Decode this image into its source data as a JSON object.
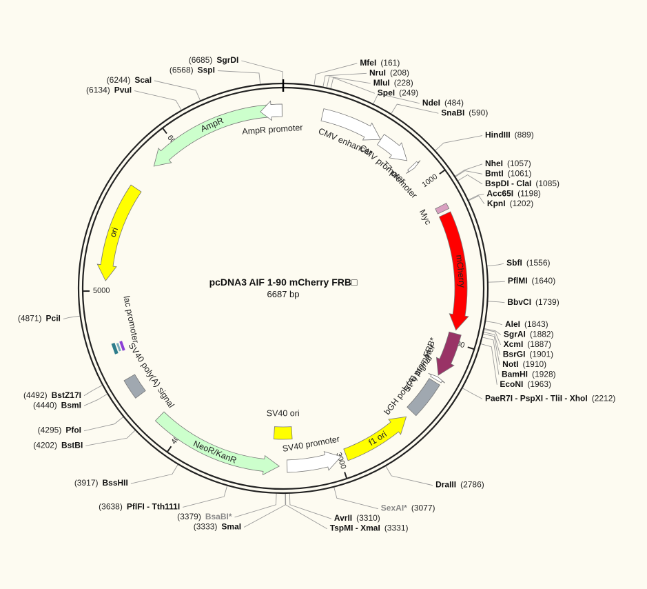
{
  "plasmid": {
    "name": "pcDNA3 AIF 1-90 mCherry FRB□",
    "length_label": "6687 bp",
    "total_bp": 6687
  },
  "ticks": [
    {
      "bp": 1000,
      "label": "1000"
    },
    {
      "bp": 2000,
      "label": "2000"
    },
    {
      "bp": 3000,
      "label": "3000"
    },
    {
      "bp": 4000,
      "label": "4000"
    },
    {
      "bp": 5000,
      "label": "5000"
    },
    {
      "bp": 6000,
      "label": "6000"
    }
  ],
  "features": [
    {
      "id": "cmv-enhancer",
      "label": "CMV enhancer",
      "start": 237,
      "end": 617,
      "dir": 1,
      "type": "arrow",
      "color": "#ffffff",
      "track": 1
    },
    {
      "id": "cmv-promoter",
      "label": "CMV promoter",
      "start": 618,
      "end": 820,
      "dir": 1,
      "type": "arrow",
      "color": "#ffffff",
      "track": 1
    },
    {
      "id": "t7-promoter",
      "label": "T7 promoter",
      "start": 864,
      "end": 883,
      "dir": 1,
      "type": "arrow",
      "color": "#ffffff",
      "track": 1
    },
    {
      "id": "myc",
      "label": "Myc",
      "start": 1160,
      "end": 1195,
      "dir": 0,
      "type": "box",
      "color": "#d9a0c0",
      "track": 1
    },
    {
      "id": "mcherry",
      "label": "mCherry",
      "start": 1215,
      "end": 1925,
      "dir": 1,
      "type": "arrow",
      "color": "#ff0000",
      "track": 1
    },
    {
      "id": "frb",
      "label": "FRB*",
      "start": 1945,
      "end": 2215,
      "dir": 1,
      "type": "arrow",
      "color": "#993366",
      "track": 1
    },
    {
      "id": "sp6-promoter",
      "label": "SP6 promoter",
      "start": 2225,
      "end": 2245,
      "dir": -1,
      "type": "arrow",
      "color": "#ffffff",
      "track": 1
    },
    {
      "id": "bgh-polya",
      "label": "bGH poly(A) signal",
      "start": 2260,
      "end": 2485,
      "dir": 0,
      "type": "box",
      "color": "#a0a8b0",
      "track": 1
    },
    {
      "id": "f1-ori",
      "label": "f1 ori",
      "start": 2530,
      "end": 2960,
      "dir": -1,
      "type": "arrow",
      "color": "#ffff00",
      "track": 1
    },
    {
      "id": "sv40-promoter",
      "label": "SV40 promoter",
      "start": 2990,
      "end": 3320,
      "dir": -1,
      "type": "arrow",
      "color": "#ffffff",
      "track": 1
    },
    {
      "id": "sv40-ori",
      "label": "SV40 ori",
      "start": 3280,
      "end": 3410,
      "dir": 0,
      "type": "box",
      "color": "#ffff00",
      "track": 2
    },
    {
      "id": "neor-kanr",
      "label": "NeoR/KanR",
      "start": 3367,
      "end": 4161,
      "dir": -1,
      "type": "arrow",
      "color": "#ccffcc",
      "track": 1
    },
    {
      "id": "sv40-polya",
      "label": "SV40 poly(A) signal",
      "start": 4335,
      "end": 4456,
      "dir": 0,
      "type": "box",
      "color": "#a0a8b0",
      "track": 1
    },
    {
      "id": "ori",
      "label": "ori",
      "start": 5060,
      "end": 5650,
      "dir": -1,
      "type": "arrow",
      "color": "#ffff00",
      "track": 1
    },
    {
      "id": "ampr",
      "label": "AmpR",
      "start": 5820,
      "end": 6680,
      "dir": -1,
      "type": "arrow",
      "color": "#ccffcc",
      "track": 1
    },
    {
      "id": "ampr-promoter",
      "label": "AmpR promoter",
      "start": 6550,
      "end": 6680,
      "dir": -1,
      "type": "arrow",
      "color": "#ffffff",
      "track": 1
    }
  ],
  "lac": {
    "label": "lac promoter",
    "op_label": "lacI op",
    "bp": 4650
  },
  "sites": [
    {
      "name": "SgrDI",
      "pos": 6685,
      "ring_bp": 6685,
      "side": "L",
      "gray": false
    },
    {
      "name": "SspI",
      "pos": 6568,
      "ring_bp": 6568,
      "side": "L",
      "gray": false
    },
    {
      "name": "ScaI",
      "pos": 6244,
      "ring_bp": 6244,
      "side": "L",
      "gray": false
    },
    {
      "name": "PvuI",
      "pos": 6134,
      "ring_bp": 6134,
      "side": "L",
      "gray": false
    },
    {
      "name": "PciI",
      "pos": 4871,
      "ring_bp": 4871,
      "side": "L",
      "gray": false
    },
    {
      "name": "BstZ17I",
      "pos": 4492,
      "ring_bp": 4492,
      "side": "L",
      "gray": false
    },
    {
      "name": "BsmI",
      "pos": 4440,
      "ring_bp": 4440,
      "side": "L",
      "gray": false
    },
    {
      "name": "PfoI",
      "pos": 4295,
      "ring_bp": 4295,
      "side": "L",
      "gray": false
    },
    {
      "name": "BstBI",
      "pos": 4202,
      "ring_bp": 4202,
      "side": "L",
      "gray": false
    },
    {
      "name": "BssHII",
      "pos": 3917,
      "ring_bp": 3917,
      "side": "L",
      "gray": false
    },
    {
      "name": "PflFI - Tth111I",
      "pos": 3638,
      "ring_bp": 3638,
      "side": "L",
      "gray": false
    },
    {
      "name": "BsaBI*",
      "pos": 3379,
      "ring_bp": 3379,
      "side": "L",
      "gray": true
    },
    {
      "name": "SmaI",
      "pos": 3333,
      "ring_bp": 3333,
      "side": "L",
      "gray": false
    },
    {
      "name": "MfeI",
      "pos": 161,
      "ring_bp": 161,
      "side": "R",
      "gray": false
    },
    {
      "name": "NruI",
      "pos": 208,
      "ring_bp": 208,
      "side": "R",
      "gray": false
    },
    {
      "name": "MluI",
      "pos": 228,
      "ring_bp": 228,
      "side": "R",
      "gray": false
    },
    {
      "name": "SpeI",
      "pos": 249,
      "ring_bp": 249,
      "side": "R",
      "gray": false
    },
    {
      "name": "NdeI",
      "pos": 484,
      "ring_bp": 484,
      "side": "R",
      "gray": false
    },
    {
      "name": "SnaBI",
      "pos": 590,
      "ring_bp": 590,
      "side": "R",
      "gray": false
    },
    {
      "name": "HindIII",
      "pos": 889,
      "ring_bp": 889,
      "side": "R",
      "gray": false
    },
    {
      "name": "NheI",
      "pos": 1057,
      "ring_bp": 1057,
      "side": "R",
      "gray": false
    },
    {
      "name": "BmtI",
      "pos": 1061,
      "ring_bp": 1061,
      "side": "R",
      "gray": false
    },
    {
      "name": "BspDI - ClaI",
      "pos": 1085,
      "ring_bp": 1085,
      "side": "R",
      "gray": false
    },
    {
      "name": "Acc65I",
      "pos": 1198,
      "ring_bp": 1198,
      "side": "R",
      "gray": false
    },
    {
      "name": "KpnI",
      "pos": 1202,
      "ring_bp": 1202,
      "side": "R",
      "gray": false
    },
    {
      "name": "SbfI",
      "pos": 1556,
      "ring_bp": 1556,
      "side": "R",
      "gray": false
    },
    {
      "name": "PflMI",
      "pos": 1640,
      "ring_bp": 1640,
      "side": "R",
      "gray": false
    },
    {
      "name": "BbvCI",
      "pos": 1739,
      "ring_bp": 1739,
      "side": "R",
      "gray": false
    },
    {
      "name": "AleI",
      "pos": 1843,
      "ring_bp": 1843,
      "side": "R",
      "gray": false
    },
    {
      "name": "SgrAI",
      "pos": 1882,
      "ring_bp": 1882,
      "side": "R",
      "gray": false
    },
    {
      "name": "XcmI",
      "pos": 1887,
      "ring_bp": 1887,
      "side": "R",
      "gray": false
    },
    {
      "name": "BsrGI",
      "pos": 1901,
      "ring_bp": 1901,
      "side": "R",
      "gray": false
    },
    {
      "name": "NotI",
      "pos": 1910,
      "ring_bp": 1910,
      "side": "R",
      "gray": false
    },
    {
      "name": "BamHI",
      "pos": 1928,
      "ring_bp": 1928,
      "side": "R",
      "gray": false
    },
    {
      "name": "EcoNI",
      "pos": 1963,
      "ring_bp": 1963,
      "side": "R",
      "gray": false
    },
    {
      "name": "PaeR7I - PspXI - TliI - XhoI",
      "pos": 2212,
      "ring_bp": 2212,
      "side": "R",
      "gray": false
    },
    {
      "name": "DraIII",
      "pos": 2786,
      "ring_bp": 2786,
      "side": "R",
      "gray": false
    },
    {
      "name": "SexAI*",
      "pos": 3077,
      "ring_bp": 3077,
      "side": "R",
      "gray": true
    },
    {
      "name": "AvrII",
      "pos": 3310,
      "ring_bp": 3310,
      "side": "R",
      "gray": false
    },
    {
      "name": "TspMI - XmaI",
      "pos": 3331,
      "ring_bp": 3331,
      "side": "R",
      "gray": false
    }
  ],
  "colors": {
    "background": "#fdfbf1",
    "backbone": "#222222",
    "leader": "#888888",
    "site_text": "#111111",
    "site_gray_text": "#888888"
  }
}
